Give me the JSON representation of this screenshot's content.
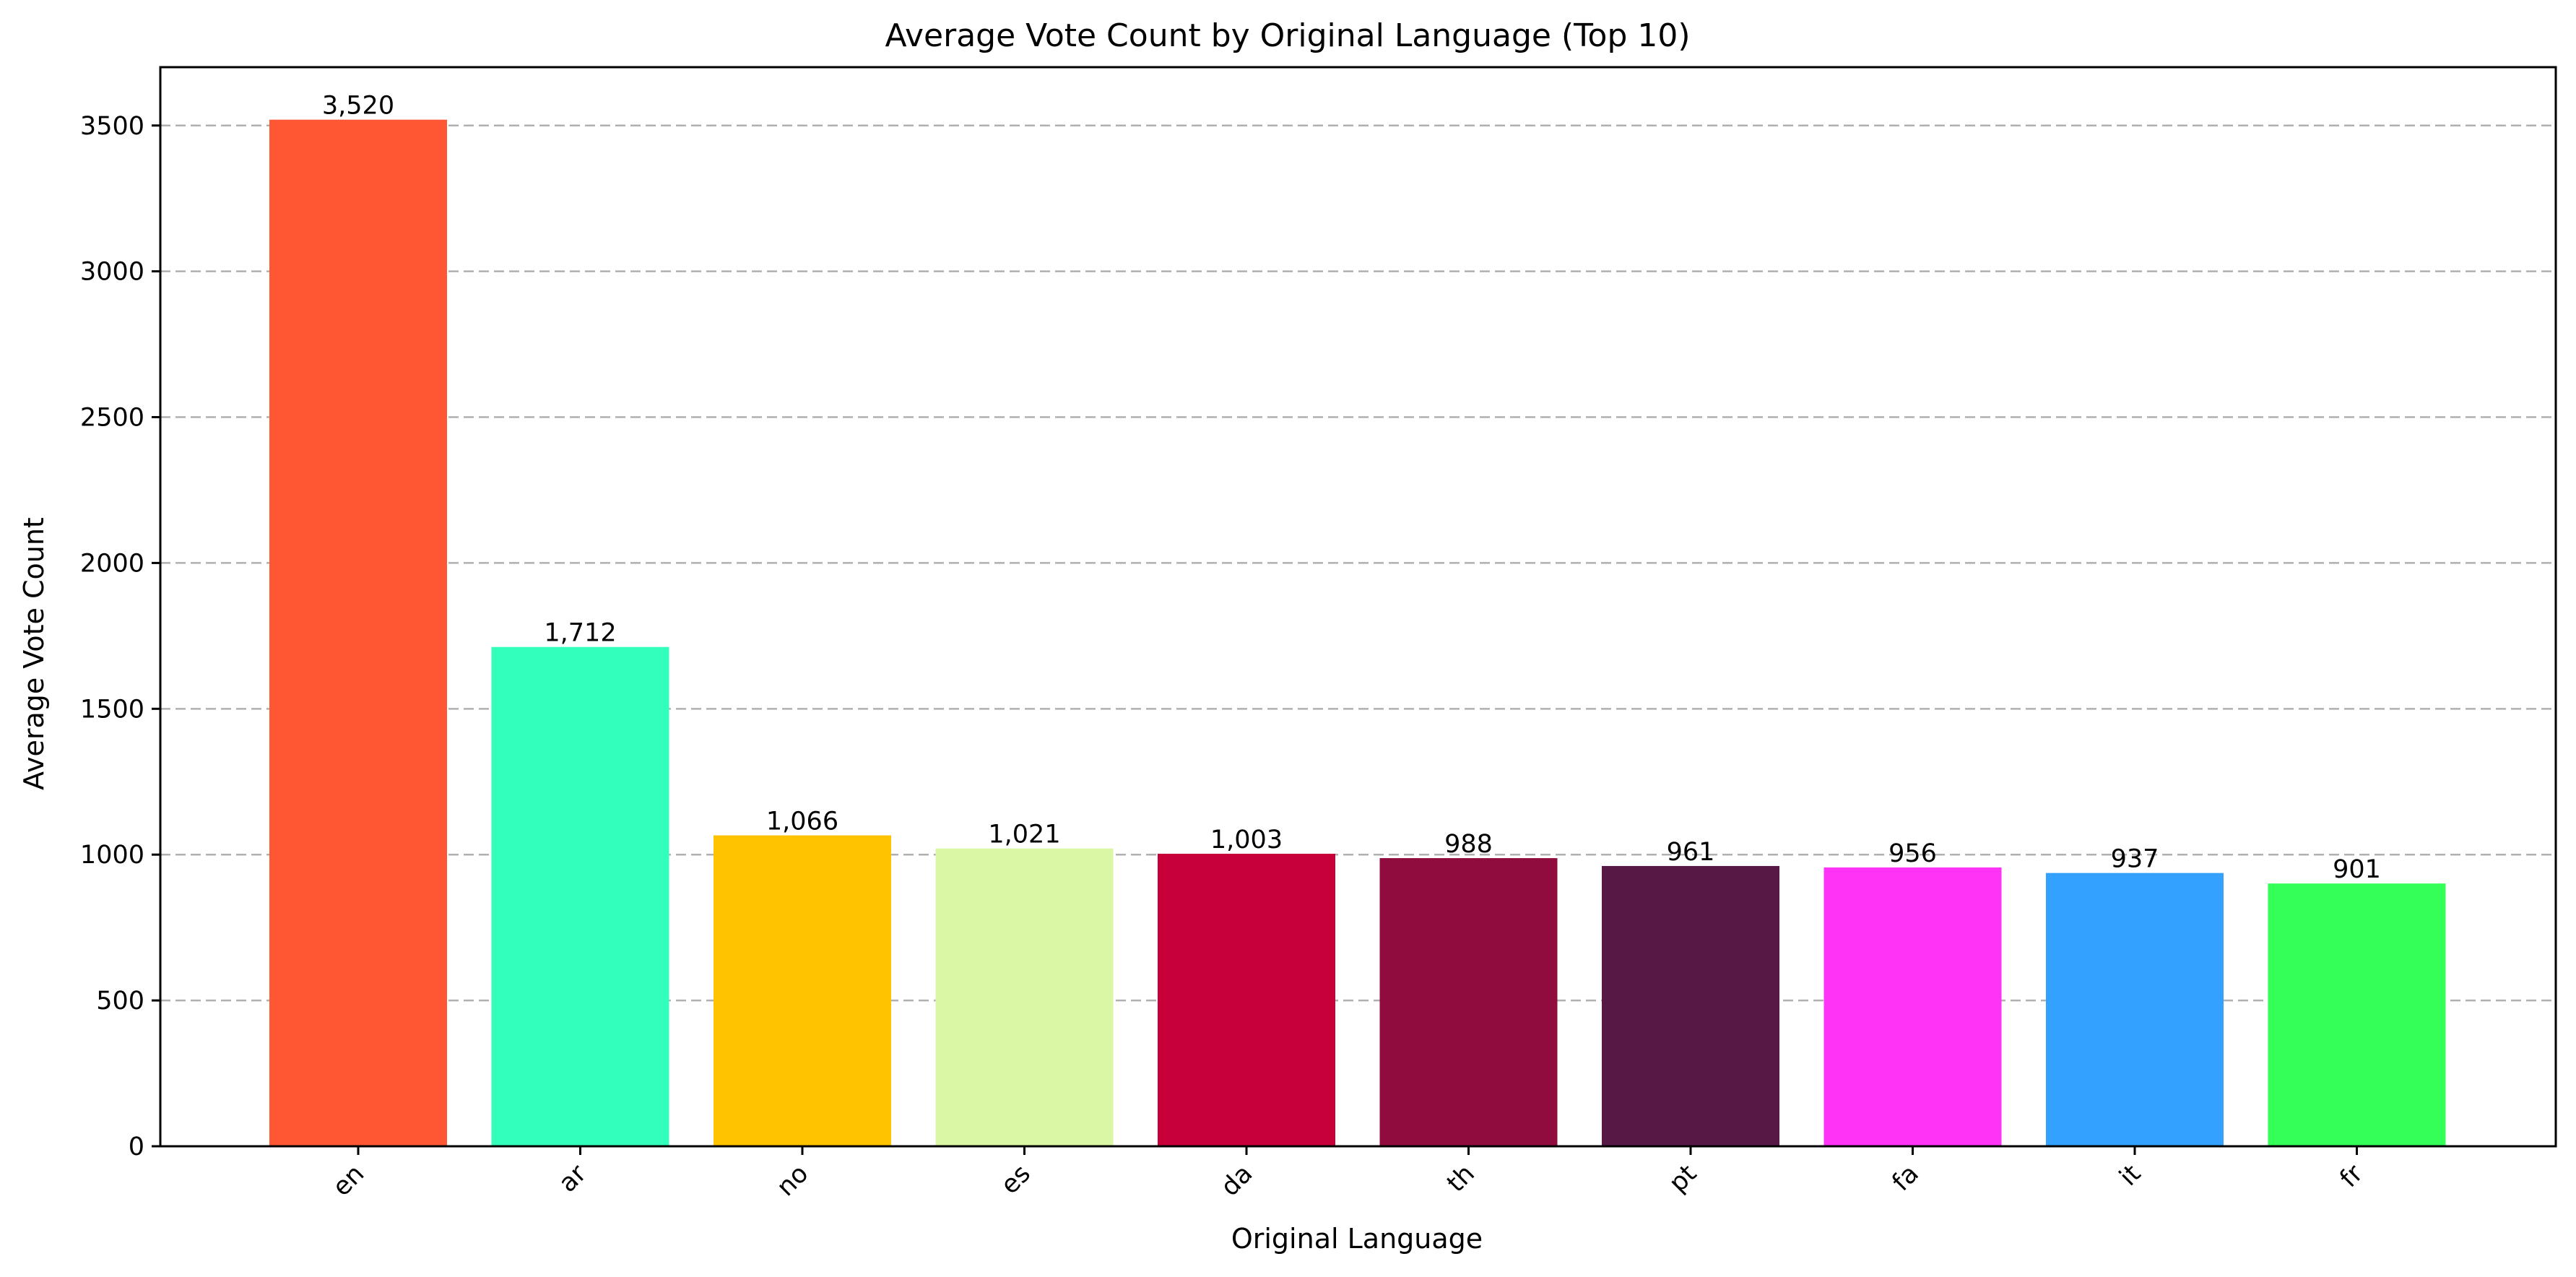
{
  "chart_data": {
    "type": "bar",
    "title": "Average Vote Count by Original Language (Top 10)",
    "xlabel": "Original Language",
    "ylabel": "Average Vote Count",
    "categories": [
      "en",
      "ar",
      "no",
      "es",
      "da",
      "th",
      "pt",
      "fa",
      "it",
      "fr"
    ],
    "values": [
      3520,
      1712,
      1066,
      1021,
      1003,
      988,
      961,
      956,
      937,
      901
    ],
    "value_labels": [
      "3,520",
      "1,712",
      "1,066",
      "1,021",
      "1,003",
      "988",
      "961",
      "956",
      "937",
      "901"
    ],
    "colors": [
      "#FF5733",
      "#33FFBD",
      "#FFC300",
      "#DAF7A6",
      "#C70039",
      "#900C3F",
      "#581845",
      "#FF33F6",
      "#33A1FF",
      "#33FF57"
    ],
    "ylim": [
      0,
      3700
    ],
    "yticks": [
      0,
      500,
      1000,
      1500,
      2000,
      2500,
      3000,
      3500
    ],
    "ytick_labels": [
      "0",
      "500",
      "1000",
      "1500",
      "2000",
      "2500",
      "3000",
      "3500"
    ],
    "grid": "y-dashed",
    "legend": "none",
    "xtick_rotation_deg": 45
  }
}
